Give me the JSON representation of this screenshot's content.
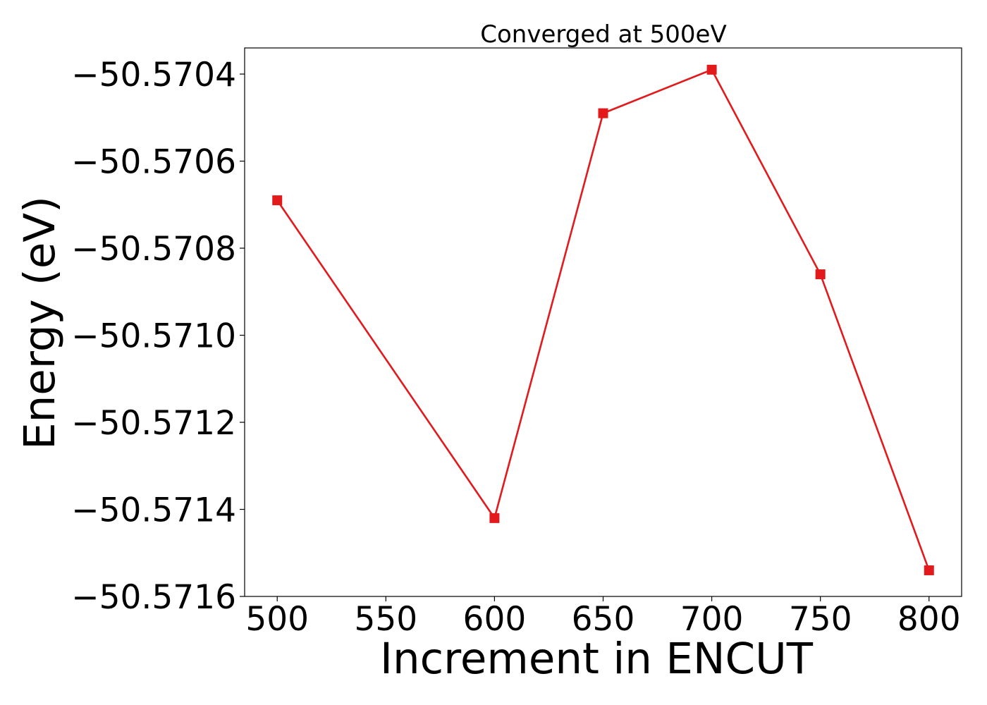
{
  "chart_data": {
    "type": "line",
    "title": "Converged at 500eV",
    "xlabel": "Increment in ENCUT",
    "ylabel": "Energy (eV)",
    "x": [
      500,
      600,
      650,
      700,
      750,
      800
    ],
    "series": [
      {
        "values": [
          -50.57069,
          -50.57142,
          -50.57049,
          -50.57039,
          -50.57086,
          -50.57154
        ],
        "color": "#e31a1c",
        "marker": "square"
      }
    ],
    "xlim": [
      485,
      815
    ],
    "ylim": [
      -50.5716,
      -50.57034
    ],
    "xticks": [
      500,
      550,
      600,
      650,
      700,
      750,
      800
    ],
    "xtick_labels": [
      "500",
      "550",
      "600",
      "650",
      "700",
      "750",
      "800"
    ],
    "yticks": [
      -50.5716,
      -50.5714,
      -50.5712,
      -50.571,
      -50.5708,
      -50.5706,
      -50.5704
    ],
    "ytick_labels": [
      "−50.5716",
      "−50.5714",
      "−50.5712",
      "−50.5710",
      "−50.5708",
      "−50.5706",
      "−50.5704"
    ],
    "grid": false,
    "legend": "none"
  }
}
